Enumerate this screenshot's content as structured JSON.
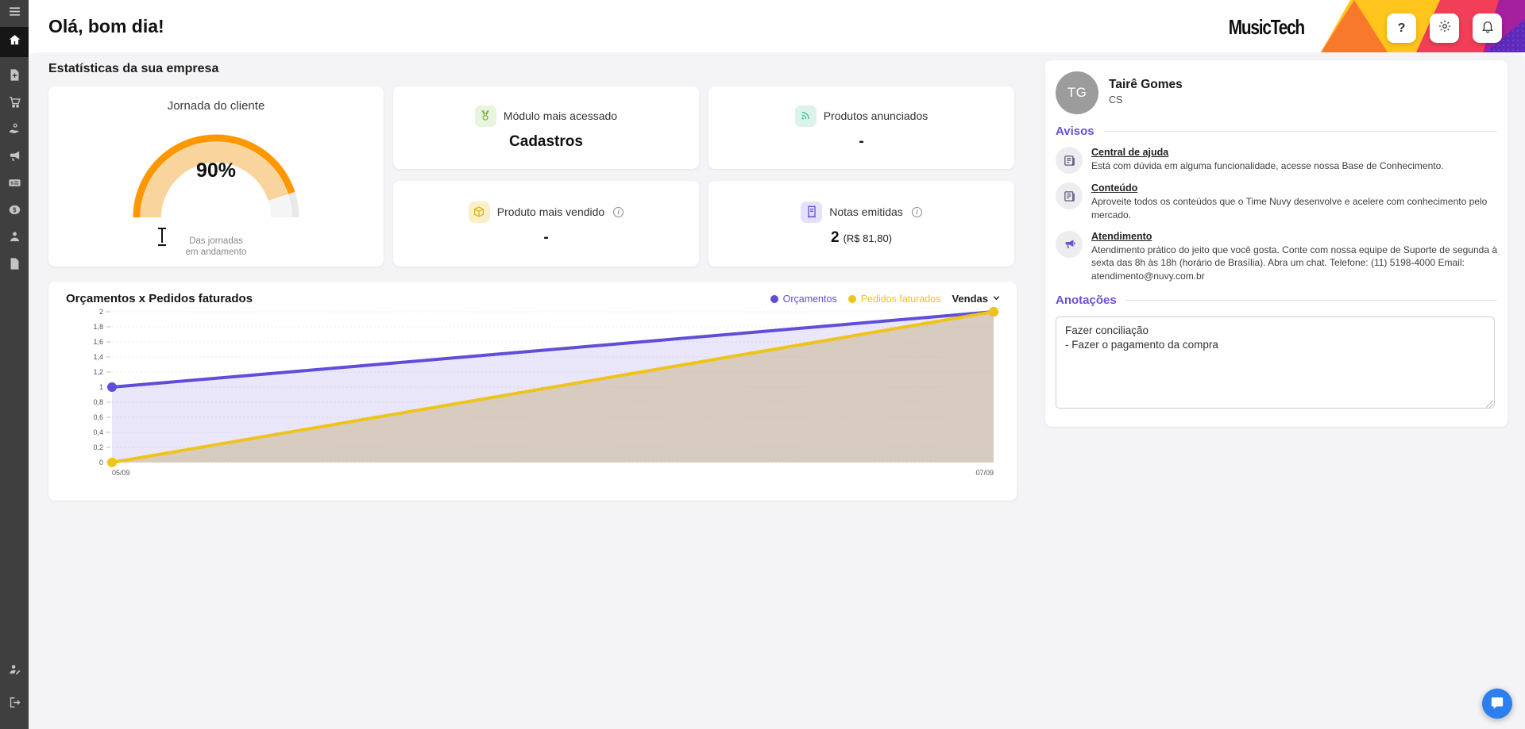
{
  "header": {
    "greeting": "Olá, bom dia!",
    "brand": "MusicTech",
    "help_label": "?"
  },
  "sidebar": {
    "items": [
      {
        "icon": "menu-icon"
      },
      {
        "icon": "home-icon",
        "active": true
      },
      {
        "icon": "new-document-icon"
      },
      {
        "icon": "cart-icon"
      },
      {
        "icon": "hand-coin-icon"
      },
      {
        "icon": "megaphone-icon"
      },
      {
        "icon": "invoice-icon"
      },
      {
        "icon": "money-icon"
      },
      {
        "icon": "person-icon"
      },
      {
        "icon": "document-icon"
      },
      {
        "icon": "person-edit-icon"
      },
      {
        "icon": "logout-icon"
      }
    ]
  },
  "stats": {
    "title": "Estatísticas da sua empresa",
    "journey": {
      "title": "Jornada do cliente",
      "percent": 90,
      "value_label": "90%",
      "caption": "Das jornadas\nem andamento",
      "color": "#ff9800",
      "band_color": "#f9d49c"
    },
    "cards": [
      {
        "icon": "medal-icon",
        "label": "Módulo mais acessado",
        "value": "Cadastros"
      },
      {
        "icon": "broadcast-icon",
        "label": "Produtos anunciados",
        "value": "-"
      },
      {
        "icon": "package-icon",
        "label": "Produto mais vendido",
        "value": "-",
        "info": true
      },
      {
        "icon": "receipt-icon",
        "label": "Notas emitidas",
        "value": "2",
        "value_suffix": "(R$ 81,80)",
        "info": true
      }
    ]
  },
  "chart": {
    "title": "Orçamentos x Pedidos faturados",
    "filter_label": "Vendas",
    "chart_data": {
      "type": "line",
      "x": [
        "05/09",
        "07/09"
      ],
      "series": [
        {
          "name": "Orçamentos",
          "values": [
            1,
            2
          ],
          "color": "#5f4fd8",
          "fill": "rgba(101,84,214,0.14)"
        },
        {
          "name": "Pedidos faturados",
          "values": [
            0,
            2
          ],
          "color": "#eec41b",
          "fill": "rgba(203,183,146,0.55)"
        }
      ],
      "ylim": [
        0,
        2
      ],
      "yticks": [
        "0",
        "0,2",
        "0,4",
        "0,6",
        "0,8",
        "1",
        "1,2",
        "1,4",
        "1,6",
        "1,8",
        "2"
      ],
      "grid": true,
      "legend_position": "top-right"
    }
  },
  "profile": {
    "initials": "TG",
    "name": "Tairê Gomes",
    "role": "CS"
  },
  "avisos": {
    "title": "Avisos",
    "items": [
      {
        "icon": "news-icon",
        "title": "Central de ajuda",
        "text": "Está com dúvida em alguma funcionalidade, acesse nossa Base de Conhecimento."
      },
      {
        "icon": "news-icon",
        "title": "Conteúdo",
        "text": "Aproveite todos os conteúdos que o Time Nuvy desenvolve e acelere com conhecimento pelo mercado."
      },
      {
        "icon": "megaphone-icon",
        "title": "Atendimento",
        "text": "Atendimento prático do jeito que você gosta. Conte com nossa equipe de Suporte de segunda à sexta das 8h às 18h (horário de Brasília). Abra um chat. Telefone: (11) 5198-4000 Email: atendimento@nuvy.com.br"
      }
    ]
  },
  "anotacoes": {
    "title": "Anotações",
    "note": "Fazer conciliação\n- Fazer o pagamento da compra"
  },
  "colors": {
    "accent": "#6c51d4",
    "header_yellow": "#ffc51c",
    "header_orange": "#f9792c",
    "header_red": "#f23e57",
    "header_magenta": "#a4209e",
    "chat_blue": "#2d7ff0"
  }
}
